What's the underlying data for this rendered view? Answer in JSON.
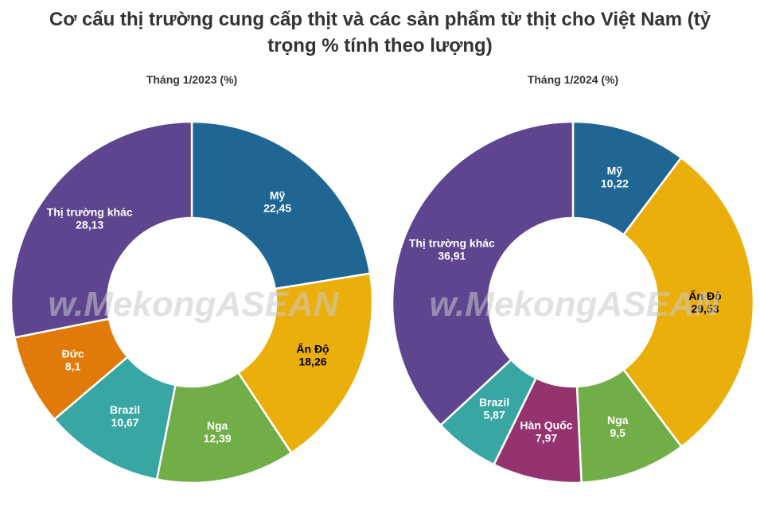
{
  "title": "Cơ cấu thị trường cung cấp thịt và các sản phẩm từ thịt cho Việt Nam (tỷ trọng % tính theo lượng)",
  "title_line1": "Cơ cấu thị trường cung cấp thịt và các sản phẩm từ thịt cho Việt Nam (tỷ",
  "title_line2": "trọng % tính theo lượng)",
  "watermark": "w.MekongASEAN",
  "chart_data": [
    {
      "type": "pie",
      "donut": true,
      "subtitle": "Tháng 1/2023 (%)",
      "slices": [
        {
          "label": "Mỹ",
          "value": 22.45,
          "value_text": "22,45",
          "color": "#1f6694",
          "label_color": "light"
        },
        {
          "label": "Ấn Độ",
          "value": 18.26,
          "value_text": "18,26",
          "color": "#ebaf0b",
          "label_color": "dark"
        },
        {
          "label": "Nga",
          "value": 12.39,
          "value_text": "12,39",
          "color": "#72ae48",
          "label_color": "light"
        },
        {
          "label": "Brazil",
          "value": 10.67,
          "value_text": "10,67",
          "color": "#38a6a3",
          "label_color": "light"
        },
        {
          "label": "Đức",
          "value": 8.1,
          "value_text": "8,1",
          "color": "#e07b09",
          "label_color": "light"
        },
        {
          "label": "Thị trường khác",
          "value": 28.13,
          "value_text": "28,13",
          "color": "#5f4590",
          "label_color": "light"
        }
      ]
    },
    {
      "type": "pie",
      "donut": true,
      "subtitle": "Tháng 1/2024 (%)",
      "slices": [
        {
          "label": "Mỹ",
          "value": 10.22,
          "value_text": "10,22",
          "color": "#1f6694",
          "label_color": "light"
        },
        {
          "label": "Ấn Độ",
          "value": 29.53,
          "value_text": "29,53",
          "color": "#ebaf0b",
          "label_color": "dark"
        },
        {
          "label": "Nga",
          "value": 9.5,
          "value_text": "9,5",
          "color": "#72ae48",
          "label_color": "light"
        },
        {
          "label": "Hàn Quốc",
          "value": 7.97,
          "value_text": "7,97",
          "color": "#95336f",
          "label_color": "light"
        },
        {
          "label": "Brazil",
          "value": 5.87,
          "value_text": "5,87",
          "color": "#38a6a3",
          "label_color": "light"
        },
        {
          "label": "Thị trường khác",
          "value": 36.91,
          "value_text": "36,91",
          "color": "#5f4590",
          "label_color": "light"
        }
      ]
    }
  ]
}
